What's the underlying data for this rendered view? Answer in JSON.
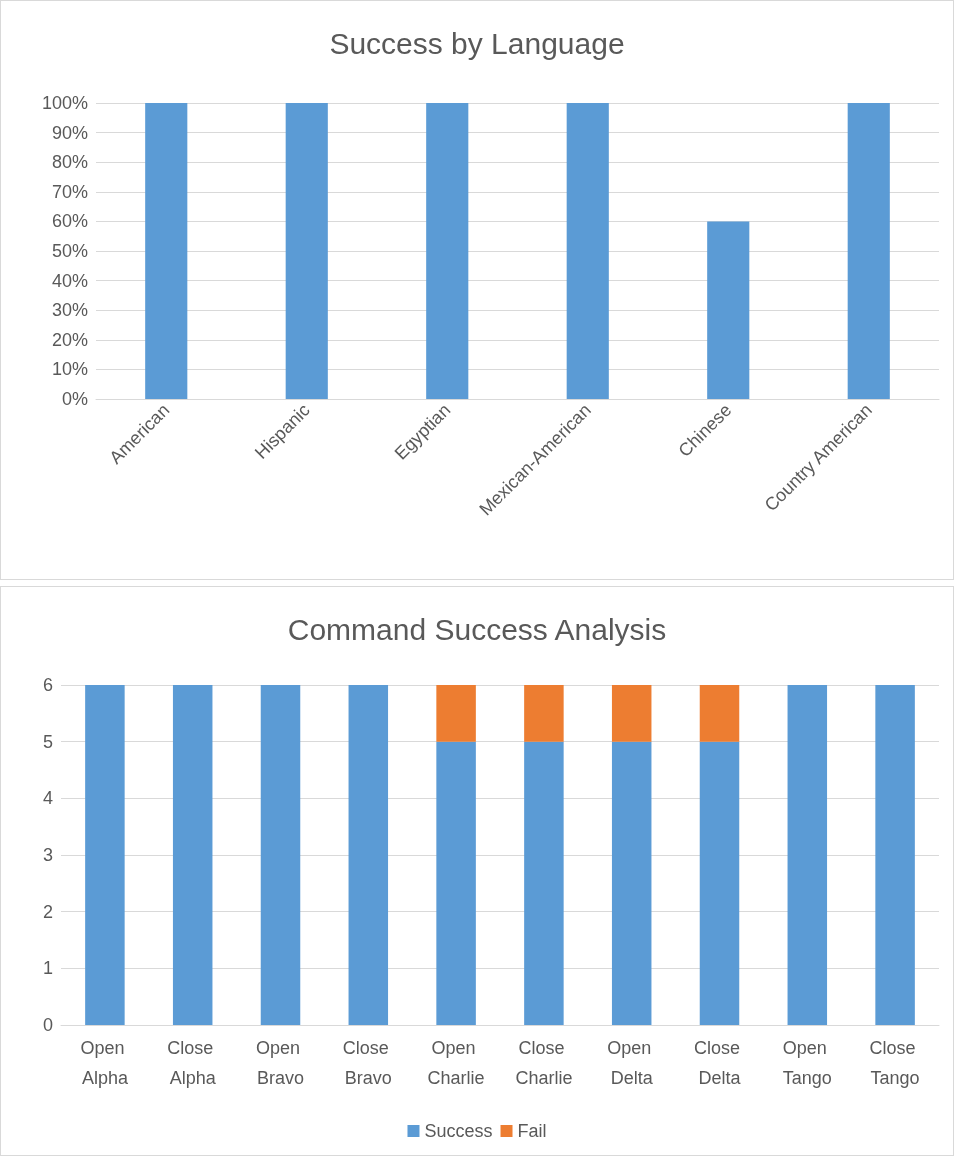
{
  "chart_data": [
    {
      "type": "bar",
      "title": "Success by Language",
      "categories": [
        "American",
        "Hispanic",
        "Egyptian",
        "Mexican-American",
        "Chinese",
        "Country American"
      ],
      "values": [
        100,
        100,
        100,
        100,
        60,
        100
      ],
      "color": "#5b9bd5",
      "ylim": [
        0,
        100
      ],
      "yticks": [
        {
          "value": 0,
          "label": "0%"
        },
        {
          "value": 10,
          "label": "10%"
        },
        {
          "value": 20,
          "label": "20%"
        },
        {
          "value": 30,
          "label": "30%"
        },
        {
          "value": 40,
          "label": "40%"
        },
        {
          "value": 50,
          "label": "50%"
        },
        {
          "value": 60,
          "label": "60%"
        },
        {
          "value": 70,
          "label": "70%"
        },
        {
          "value": 80,
          "label": "80%"
        },
        {
          "value": 90,
          "label": "90%"
        },
        {
          "value": 100,
          "label": "100%"
        }
      ],
      "grid": "y",
      "legend": false
    },
    {
      "type": "bar",
      "title": "Command Success Analysis",
      "categories": [
        "Open Alpha",
        "Close Alpha",
        "Open Bravo",
        "Close Bravo",
        "Open Charlie",
        "Close Charlie",
        "Open Delta",
        "Close Delta",
        "Open Tango",
        "Close Tango"
      ],
      "stacked": true,
      "series": [
        {
          "name": "Success",
          "color": "#5b9bd5",
          "values": [
            6,
            6,
            6,
            6,
            5,
            5,
            5,
            5,
            6,
            6
          ]
        },
        {
          "name": "Fail",
          "color": "#ed7d31",
          "values": [
            0,
            0,
            0,
            0,
            1,
            1,
            1,
            1,
            0,
            0
          ]
        }
      ],
      "ylim": [
        0,
        6
      ],
      "yticks": [
        0,
        1,
        2,
        3,
        4,
        5,
        6
      ],
      "grid": "y",
      "legend": "bottom"
    }
  ]
}
